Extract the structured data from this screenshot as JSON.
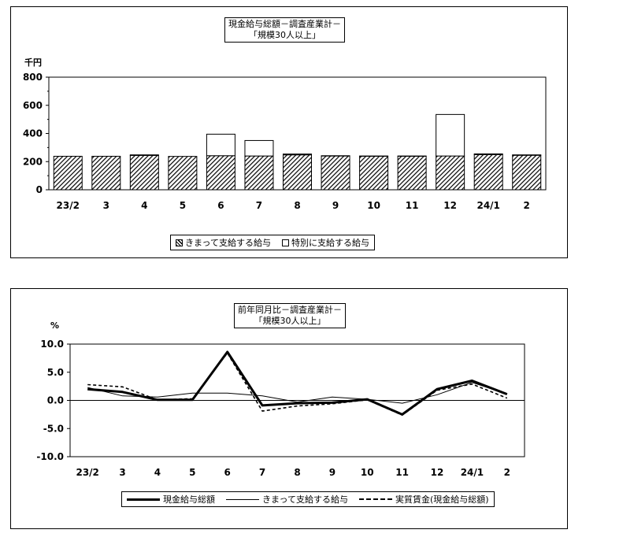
{
  "chart_data": [
    {
      "type": "bar",
      "title_lines": [
        "現金給与総額－調査産業計－",
        "「規模30人以上」"
      ],
      "unit": "千円",
      "categories": [
        "23/2",
        "3",
        "4",
        "5",
        "6",
        "7",
        "8",
        "9",
        "10",
        "11",
        "12",
        "24/1",
        "2"
      ],
      "series": [
        {
          "name": "きまって支給する給与",
          "values": [
            238,
            238,
            244,
            237,
            242,
            240,
            248,
            240,
            238,
            238,
            240,
            250,
            245
          ]
        },
        {
          "name": "特別に支給する給与",
          "values": [
            0,
            0,
            4,
            0,
            153,
            110,
            6,
            2,
            2,
            2,
            295,
            5,
            3
          ]
        }
      ],
      "stacked": true,
      "ylim": [
        0,
        800
      ],
      "yticks": [
        "0",
        "200",
        "400",
        "600",
        "800"
      ],
      "legend_position": "bottom"
    },
    {
      "type": "line",
      "title_lines": [
        "前年同月比－調査産業計－",
        "「規模30人以上」"
      ],
      "unit": "%",
      "categories": [
        "23/2",
        "3",
        "4",
        "5",
        "6",
        "7",
        "8",
        "9",
        "10",
        "11",
        "12",
        "24/1",
        "2"
      ],
      "series": [
        {
          "name": "現金給与総額",
          "style": "thick",
          "values": [
            2.0,
            1.5,
            0.1,
            0.1,
            8.6,
            -0.9,
            -0.5,
            -0.4,
            0.2,
            -2.5,
            2.0,
            3.5,
            1.1
          ]
        },
        {
          "name": "きまって支給する給与",
          "style": "thin",
          "values": [
            2.3,
            0.8,
            0.6,
            1.3,
            1.3,
            0.8,
            -0.3,
            0.6,
            0.2,
            -0.5,
            1.0,
            3.2,
            1.1
          ]
        },
        {
          "name": "実質賃金(現金給与総額)",
          "style": "dashed",
          "values": [
            2.8,
            2.4,
            0.1,
            0.3,
            8.4,
            -1.9,
            -1.0,
            -0.6,
            0.1,
            -2.6,
            1.8,
            2.9,
            0.4
          ]
        }
      ],
      "ylim": [
        -10,
        10
      ],
      "yticks": [
        "10.0",
        "5.0",
        "0.0",
        "-5.0",
        "-10.0"
      ],
      "legend_position": "bottom"
    }
  ]
}
